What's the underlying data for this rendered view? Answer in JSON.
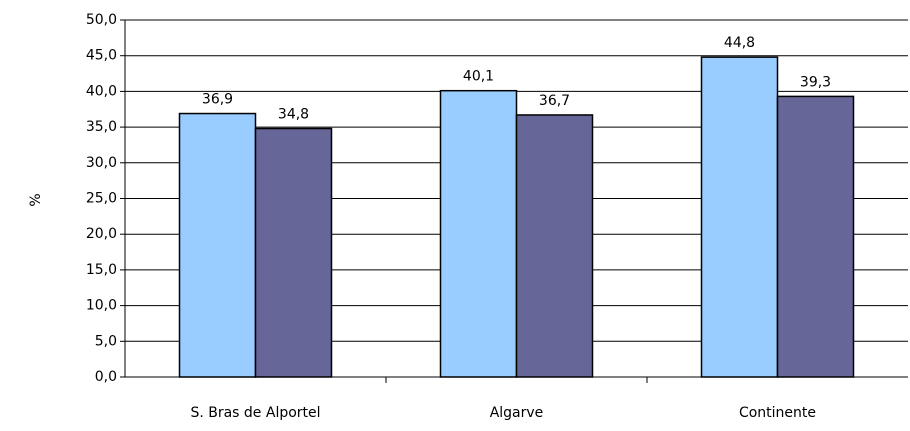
{
  "chart_data": {
    "type": "bar",
    "y_label": "%",
    "categories": [
      "S. Bras de Alportel",
      "Algarve",
      "Continente"
    ],
    "series": [
      {
        "color": "#99ccff",
        "values": [
          36.9,
          40.1,
          44.8
        ],
        "value_labels": [
          "36,9",
          "40,1",
          "44,8"
        ]
      },
      {
        "color": "#666699",
        "values": [
          34.8,
          36.7,
          39.3
        ],
        "value_labels": [
          "34,8",
          "36,7",
          "39,3"
        ]
      }
    ],
    "ylim": [
      0,
      50
    ],
    "yticks": [
      {
        "value": 0,
        "label": "0,0"
      },
      {
        "value": 5,
        "label": "5,0"
      },
      {
        "value": 10,
        "label": "10,0"
      },
      {
        "value": 15,
        "label": "15,0"
      },
      {
        "value": 20,
        "label": "20,0"
      },
      {
        "value": 25,
        "label": "25,0"
      },
      {
        "value": 30,
        "label": "30,0"
      },
      {
        "value": 35,
        "label": "35,0"
      },
      {
        "value": 40,
        "label": "40,0"
      },
      {
        "value": 45,
        "label": "45,0"
      },
      {
        "value": 50,
        "label": "50,0"
      }
    ],
    "grid": true
  }
}
